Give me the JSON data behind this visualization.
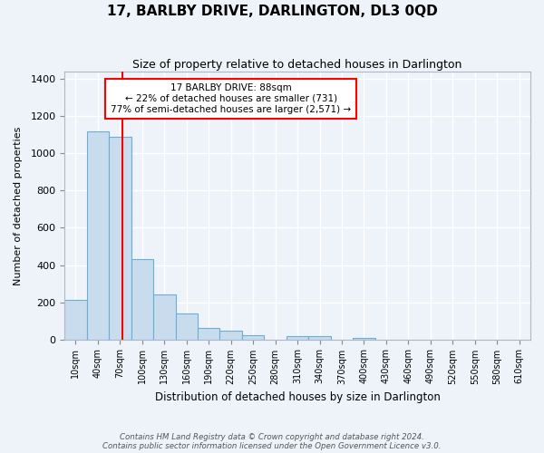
{
  "title": "17, BARLBY DRIVE, DARLINGTON, DL3 0QD",
  "subtitle": "Size of property relative to detached houses in Darlington",
  "xlabel": "Distribution of detached houses by size in Darlington",
  "ylabel": "Number of detached properties",
  "bar_color": "#c9dcee",
  "bar_edge_color": "#6aaed6",
  "background_color": "#eef3f9",
  "grid_color": "#ffffff",
  "bin_labels": [
    "10sqm",
    "40sqm",
    "70sqm",
    "100sqm",
    "130sqm",
    "160sqm",
    "190sqm",
    "220sqm",
    "250sqm",
    "280sqm",
    "310sqm",
    "340sqm",
    "370sqm",
    "400sqm",
    "430sqm",
    "460sqm",
    "490sqm",
    "520sqm",
    "550sqm",
    "580sqm",
    "610sqm"
  ],
  "bar_heights": [
    210,
    1120,
    1090,
    430,
    240,
    140,
    60,
    45,
    20,
    0,
    15,
    15,
    0,
    10,
    0,
    0,
    0,
    0,
    0,
    0,
    0
  ],
  "bin_starts": [
    10,
    40,
    70,
    100,
    130,
    160,
    190,
    220,
    250,
    280,
    310,
    340,
    370,
    400,
    430,
    460,
    490,
    520,
    550,
    580,
    610
  ],
  "bin_width": 30,
  "ylim": [
    0,
    1440
  ],
  "yticks": [
    0,
    200,
    400,
    600,
    800,
    1000,
    1200,
    1400
  ],
  "property_size": 88,
  "annotation_title": "17 BARLBY DRIVE: 88sqm",
  "annotation_line1": "← 22% of detached houses are smaller (731)",
  "annotation_line2": "77% of semi-detached houses are larger (2,571) →",
  "annotation_box_color": "white",
  "annotation_border_color": "red",
  "footer1": "Contains HM Land Registry data © Crown copyright and database right 2024.",
  "footer2": "Contains public sector information licensed under the Open Government Licence v3.0."
}
